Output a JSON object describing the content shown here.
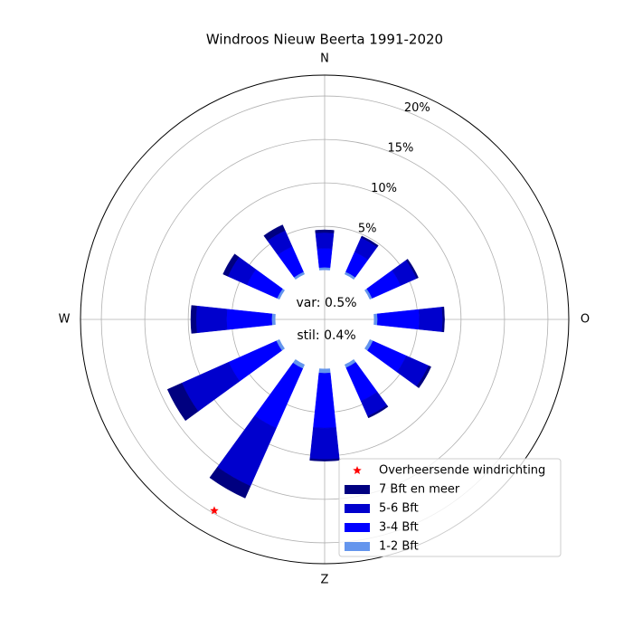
{
  "chart_data": {
    "type": "windrose",
    "title": "Windroos Nieuw Beerta 1991-2020",
    "x": [
      0,
      30,
      60,
      90,
      120,
      150,
      180,
      210,
      240,
      270,
      300,
      330
    ],
    "xlim": [
      0,
      360
    ],
    "xticks": [
      {
        "value": 0,
        "label": "N"
      },
      {
        "value": 90,
        "label": "O"
      },
      {
        "value": 180,
        "label": "Z"
      },
      {
        "value": 270,
        "label": "W"
      }
    ],
    "ylim": [
      -5.7,
      22.4
    ],
    "yticks": [
      {
        "value": 5,
        "label": "5%"
      },
      {
        "value": 10,
        "label": "10%"
      },
      {
        "value": 15,
        "label": "15%"
      },
      {
        "value": 20,
        "label": "20%"
      }
    ],
    "grid": true,
    "series": [
      {
        "name": "1-2 Bft",
        "color": "#6495ed",
        "values": [
          0.3,
          0.3,
          0.3,
          0.4,
          0.4,
          0.4,
          0.5,
          0.5,
          0.4,
          0.4,
          0.3,
          0.3
        ]
      },
      {
        "name": "3-4 Bft",
        "color": "#0000ff",
        "values": [
          2.2,
          2.5,
          3.6,
          4.8,
          4.2,
          4.2,
          6.3,
          7.5,
          6.0,
          5.2,
          3.8,
          3.2
        ]
      },
      {
        "name": "5-6 Bft",
        "color": "#0000cd",
        "values": [
          1.8,
          1.8,
          2.0,
          2.7,
          2.8,
          1.9,
          3.6,
          7.3,
          5.9,
          3.5,
          2.4,
          2.0
        ]
      },
      {
        "name": "7 Bft en meer",
        "color": "#000080",
        "values": [
          0.3,
          0.2,
          0.2,
          0.2,
          0.3,
          0.2,
          0.2,
          1.5,
          1.8,
          0.6,
          0.6,
          0.7
        ]
      }
    ],
    "prevailing": {
      "name": "Overheersende windrichting",
      "color": "#ff0000",
      "direction": 210,
      "value": 19.7
    },
    "annotations": [
      "var: 0.5%",
      "stil: 0.4%"
    ],
    "legend": "lower right"
  }
}
